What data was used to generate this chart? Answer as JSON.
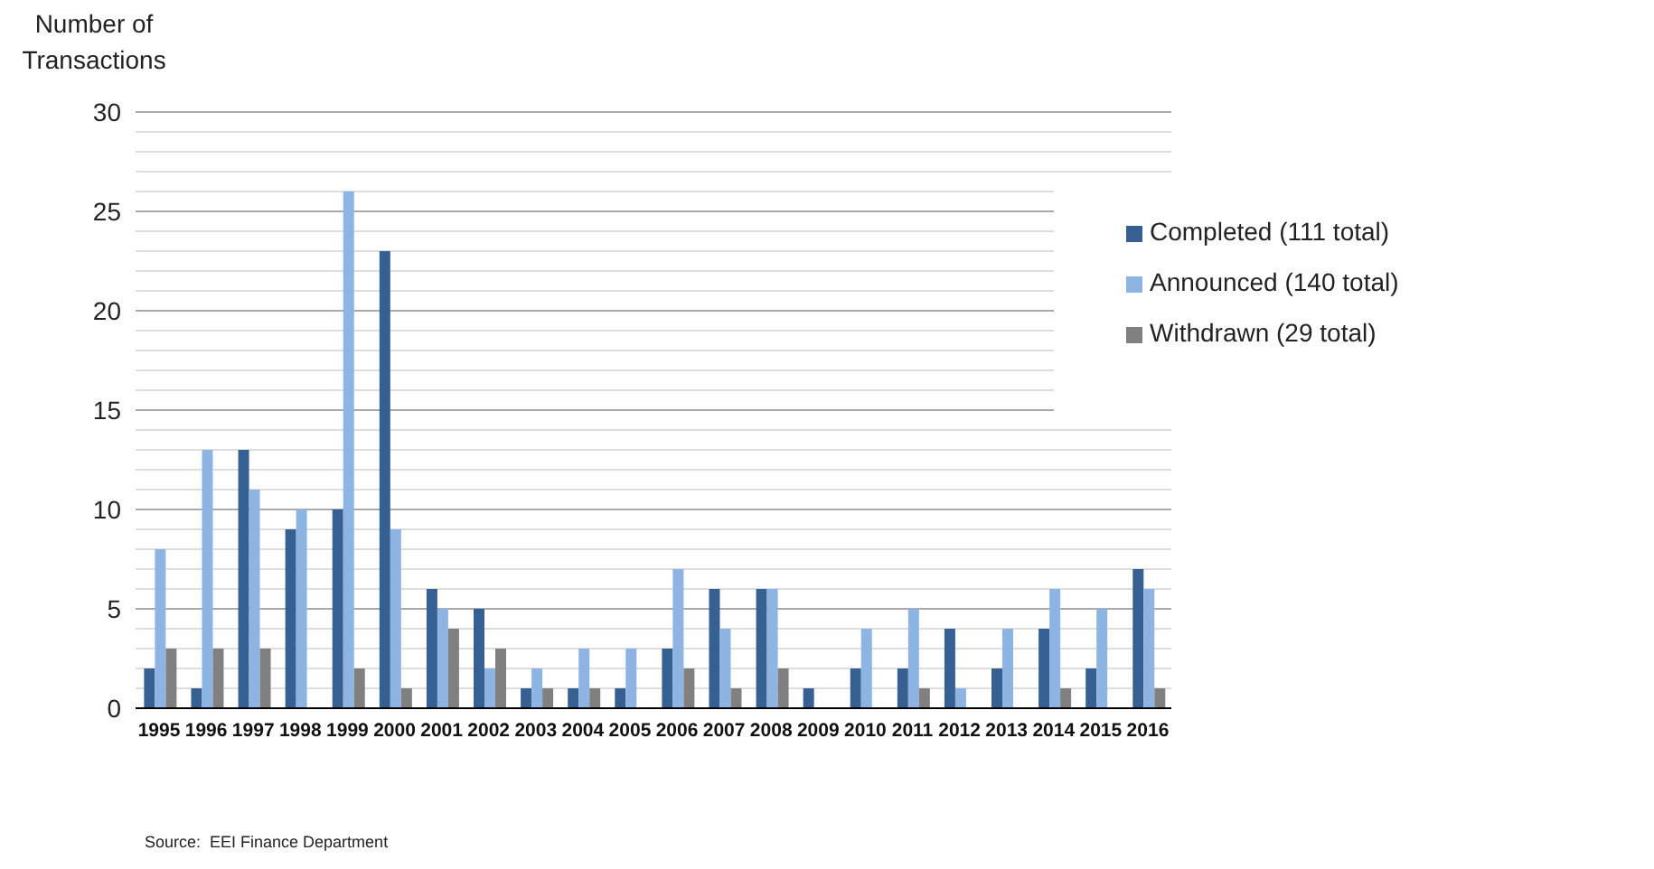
{
  "chart_data": {
    "type": "bar",
    "ylabel": "Number of Transactions",
    "categories": [
      "1995",
      "1996",
      "1997",
      "1998",
      "1999",
      "2000",
      "2001",
      "2002",
      "2003",
      "2004",
      "2005",
      "2006",
      "2007",
      "2008",
      "2009",
      "2010",
      "2011",
      "2012",
      "2013",
      "2014",
      "2015",
      "2016"
    ],
    "series": [
      {
        "name": "Completed (111 total)",
        "color": "#376092",
        "values": [
          2,
          1,
          13,
          9,
          10,
          23,
          6,
          5,
          1,
          1,
          1,
          3,
          6,
          6,
          1,
          2,
          2,
          4,
          2,
          4,
          2,
          7
        ]
      },
      {
        "name": "Announced (140 total)",
        "color": "#8eb4e3",
        "values": [
          8,
          13,
          11,
          10,
          26,
          9,
          5,
          2,
          2,
          3,
          3,
          7,
          4,
          6,
          0,
          4,
          5,
          1,
          4,
          6,
          5,
          6
        ]
      },
      {
        "name": "Withdrawn (29 total)",
        "color": "#808080",
        "values": [
          3,
          3,
          3,
          0,
          2,
          1,
          4,
          3,
          1,
          1,
          0,
          2,
          1,
          2,
          0,
          0,
          1,
          0,
          0,
          1,
          0,
          1
        ]
      }
    ],
    "ylim": [
      0,
      30
    ],
    "yticks": [
      0,
      {
        "value": 1,
        "label": null
      },
      {
        "value": 2,
        "label": null
      },
      {
        "value": 3,
        "label": null
      },
      {
        "value": 4,
        "label": null
      },
      5,
      {
        "value": 6,
        "label": null
      },
      {
        "value": 7,
        "label": null
      },
      {
        "value": 8,
        "label": null
      },
      {
        "value": 9,
        "label": null
      },
      10,
      {
        "value": 11,
        "label": null
      },
      {
        "value": 12,
        "label": null
      },
      {
        "value": 13,
        "label": null
      },
      {
        "value": 14,
        "label": null
      },
      15,
      {
        "value": 16,
        "label": null
      },
      {
        "value": 17,
        "label": null
      },
      {
        "value": 18,
        "label": null
      },
      {
        "value": 19,
        "label": null
      },
      20,
      {
        "value": 21,
        "label": null
      },
      {
        "value": 22,
        "label": null
      },
      {
        "value": 23,
        "label": null
      },
      {
        "value": 24,
        "label": null
      },
      25,
      {
        "value": 26,
        "label": null
      },
      {
        "value": 27,
        "label": null
      },
      {
        "value": 28,
        "label": null
      },
      {
        "value": 29,
        "label": null
      },
      30
    ],
    "grid": "y",
    "legend": "top right",
    "annotations": [
      "Source:  EEI Finance Department"
    ]
  }
}
